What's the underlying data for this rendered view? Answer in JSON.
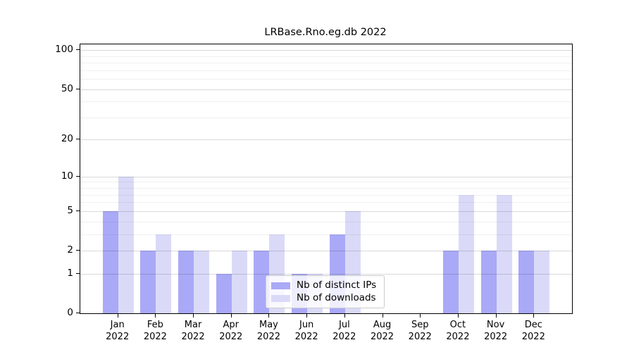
{
  "chart_data": {
    "type": "bar",
    "title": "LRBase.Rno.eg.db 2022",
    "categories": [
      "Jan",
      "Feb",
      "Mar",
      "Apr",
      "May",
      "Jun",
      "Jul",
      "Aug",
      "Sep",
      "Oct",
      "Nov",
      "Dec"
    ],
    "year_label": "2022",
    "series": [
      {
        "name": "Nb of distinct IPs",
        "color": "#a9a9f7",
        "values": [
          5,
          2,
          2,
          1,
          2,
          1,
          3,
          0,
          0,
          2,
          2,
          2
        ]
      },
      {
        "name": "Nb of downloads",
        "color": "#dadaf8",
        "values": [
          10,
          3,
          2,
          2,
          3,
          1,
          5,
          0,
          0,
          7,
          7,
          2
        ]
      }
    ],
    "xlabel": "",
    "ylabel": "",
    "y_scale": "log1p",
    "ylim": [
      0,
      110
    ],
    "y_ticks": [
      0,
      1,
      2,
      5,
      10,
      20,
      50,
      100
    ],
    "y_minor_ticks": [
      3,
      4,
      6,
      7,
      8,
      9,
      30,
      40,
      60,
      70,
      80,
      90
    ],
    "grid": "both, drawn above bars",
    "legend_position": "inside lower center",
    "colors": {
      "background": "#ffffff",
      "spine": "#000000",
      "grid_major": "rgba(0,0,0,0.15)",
      "grid_minor": "rgba(0,0,0,0.06)",
      "text": "#000000",
      "legend_border": "#cccccc"
    }
  }
}
